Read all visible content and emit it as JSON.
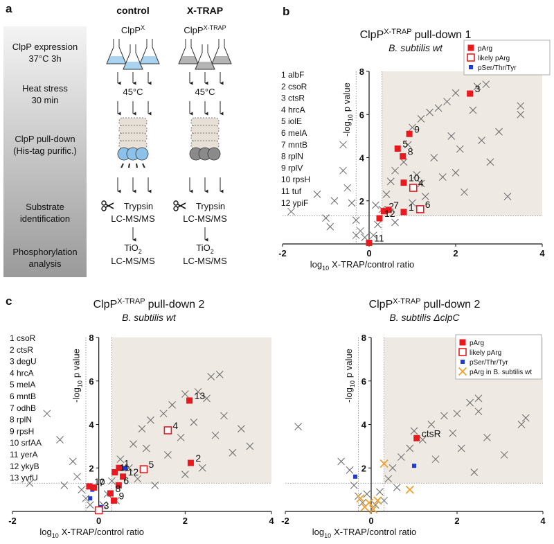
{
  "panel_labels": [
    "a",
    "b",
    "c"
  ],
  "workflow": {
    "steps": [
      [
        "ClpP expression",
        "37°C 3h"
      ],
      [
        "Heat stress",
        "30 min"
      ],
      [
        "ClpP pull-down",
        "(His-tag purific.)"
      ],
      [
        "Substrate",
        "identification"
      ],
      [
        "Phosphorylation",
        "analysis"
      ]
    ],
    "columns": [
      {
        "header": "control",
        "protein": "ClpP",
        "protein_sup": "X"
      },
      {
        "header": "X-TRAP",
        "protein": "ClpP",
        "protein_sup": "X-TRAP"
      }
    ],
    "temperature": "45°C",
    "digest": "Trypsin",
    "ms": "LC-MS/MS",
    "enrich": "TiO",
    "enrich_sub": "2"
  },
  "chart_data": [
    {
      "type": "scatter",
      "title": "ClpP",
      "title_sup": "X-TRAP",
      "title_suffix": "pull-down 1",
      "subtitle": "B. subtilis wt",
      "xlabel": "log",
      "xlabel_sub": "10",
      "xlabel_suffix": "X-TRAP/control ratio",
      "ylabel": "-log",
      "ylabel_sub": "10",
      "ylabel_suffix": "p value",
      "xlim": [
        -2,
        4
      ],
      "ylim": [
        0,
        8
      ],
      "xticks": [
        -2,
        0,
        2,
        4
      ],
      "yticks": [
        2,
        4,
        6,
        8
      ],
      "thresholds": {
        "x": [
          -0.3,
          0.3
        ],
        "y": 1.3
      },
      "legend": "upper right",
      "key": [
        "1 albF",
        "2 csoR",
        "3 ctsR",
        "4 hrcA",
        "5 iolE",
        "6 melA",
        "7 mntB",
        "8 rplN",
        "9 rplV",
        "10 rpsH",
        "11 tuf",
        "12 ypiF"
      ],
      "series": [
        {
          "color": "#666666",
          "marker": "x",
          "x": [
            -1.8,
            -1.2,
            -1.0,
            -0.8,
            -0.6,
            -0.6,
            -0.5,
            -0.4,
            -0.3,
            -0.2,
            -0.1,
            0.1,
            0.2,
            0.3,
            0.4,
            0.5,
            0.6,
            0.8,
            0.9,
            1.0,
            1.1,
            1.2,
            1.3,
            1.4,
            1.5,
            1.6,
            1.7,
            1.8,
            1.9,
            2.0,
            2.1,
            2.2,
            2.4,
            2.5,
            2.6,
            2.7,
            2.8,
            3.0,
            3.2,
            3.5,
            3.5,
            -0.9,
            -0.3,
            0.15,
            0.6,
            1.0,
            1.2,
            2.0
          ],
          "values": [
            1.5,
            2.3,
            1.2,
            2.0,
            3.4,
            4.6,
            2.6,
            1.9,
            1.1,
            0.6,
            0.3,
            0.4,
            0.9,
            1.6,
            2.3,
            2.9,
            3.4,
            3.8,
            4.6,
            5.4,
            3.2,
            5.8,
            2.2,
            6.1,
            4.0,
            6.3,
            3.1,
            6.6,
            5.0,
            7.0,
            4.4,
            2.4,
            6.2,
            7.3,
            4.8,
            7.4,
            3.8,
            5.2,
            2.2,
            6.0,
            6.4,
            0.8,
            0.4,
            1.8,
            1.0,
            1.9,
            2.8,
            3.3
          ]
        },
        {
          "name": "pArg",
          "color": "#e8191f",
          "marker": "square",
          "x": [
            2.33,
            0.93,
            0.66,
            0.78,
            0.8,
            0.34,
            0.45,
            0.8,
            0.24,
            0.0
          ],
          "values": [
            6.97,
            5.1,
            4.42,
            4.06,
            2.84,
            1.52,
            1.58,
            1.48,
            1.19,
            0.05
          ],
          "point_labels": [
            "3",
            "9",
            "5",
            "8",
            "10",
            "2",
            "7",
            "1",
            "12",
            "11"
          ]
        },
        {
          "name": "likely pArg",
          "color": "#e8191f",
          "marker": "open-square",
          "x": [
            1.02,
            1.18
          ],
          "values": [
            2.6,
            1.61
          ],
          "point_labels": [
            "4",
            "6"
          ]
        },
        {
          "name": "pSer/Thr/Tyr",
          "color": "#1f3bd6",
          "marker": "small-square",
          "x": [],
          "values": []
        }
      ]
    },
    {
      "type": "scatter",
      "title": "ClpP",
      "title_sup": "X-TRAP",
      "title_suffix": "pull-down 2",
      "subtitle": "B. subtilis wt",
      "xlabel": "log",
      "xlabel_sub": "10",
      "xlabel_suffix": "X-TRAP/control ratio",
      "ylabel": "-log",
      "ylabel_sub": "10",
      "ylabel_suffix": "p value",
      "xlim": [
        -2,
        4
      ],
      "ylim": [
        0,
        8
      ],
      "xticks": [
        -2,
        0,
        2,
        4
      ],
      "yticks": [
        2,
        4,
        6,
        8
      ],
      "thresholds": {
        "x": [
          -0.3,
          0.3
        ],
        "y": 1.3
      },
      "key": [
        "1 csoR",
        "2 ctsR",
        "3 degU",
        "4 hrcA",
        "5 melA",
        "6 mntB",
        "7 odhB",
        "8 rplN",
        "9 rpsH",
        "10 srfAA",
        "11 yerA",
        "12 ykyB",
        "13 yvfU"
      ],
      "series": [
        {
          "color": "#666666",
          "marker": "x",
          "x": [
            -1.2,
            -0.9,
            -0.6,
            -0.5,
            -0.4,
            -0.3,
            -0.2,
            0.1,
            0.2,
            0.3,
            0.5,
            0.7,
            0.8,
            1.0,
            1.2,
            1.3,
            1.5,
            1.6,
            1.7,
            1.9,
            2.0,
            2.2,
            2.3,
            2.4,
            2.5,
            2.6,
            2.7,
            2.8,
            2.9,
            3.1,
            3.3,
            3.5,
            -1.6,
            -0.8,
            0.4,
            0.9,
            1.1,
            2.0
          ],
          "values": [
            4.5,
            3.3,
            2.3,
            1.6,
            1.0,
            0.6,
            0.3,
            0.3,
            0.8,
            1.4,
            2.4,
            2.0,
            3.1,
            3.8,
            4.2,
            1.2,
            4.5,
            2.6,
            4.9,
            3.4,
            5.4,
            4.1,
            5.5,
            2.0,
            5.2,
            6.2,
            3.5,
            6.3,
            4.4,
            2.7,
            3.8,
            3.0,
            1.3,
            1.2,
            0.5,
            1.5,
            2.9,
            1.7
          ]
        },
        {
          "color": "#1f3bd6",
          "marker": "small-square",
          "x": [
            -0.2,
            0.6,
            -0.15,
            0.05
          ],
          "values": [
            0.6,
            2.0,
            1.0,
            0.2
          ]
        },
        {
          "color": "#e8191f",
          "marker": "square",
          "x": [
            2.1,
            2.13,
            0.47,
            0.37,
            0.56,
            0.46,
            0.27,
            0.35,
            -0.22,
            -0.11
          ],
          "values": [
            5.1,
            2.23,
            2.0,
            1.8,
            1.6,
            1.2,
            0.83,
            0.5,
            1.15,
            1.1
          ],
          "point_labels": [
            "13",
            "2",
            "1",
            "11",
            "12",
            "6",
            "8",
            "9",
            "10",
            "7"
          ]
        },
        {
          "color": "#e8191f",
          "marker": "open-square",
          "x": [
            1.6,
            1.04,
            0.0
          ],
          "values": [
            3.73,
            1.94,
            0.05
          ],
          "point_labels": [
            "4",
            "5",
            "3"
          ]
        }
      ]
    },
    {
      "type": "scatter",
      "title": "ClpP",
      "title_sup": "X-TRAP",
      "title_suffix": "pull-down 2",
      "subtitle": "B. subtilis ΔclpC",
      "xlabel": "log",
      "xlabel_sub": "10",
      "xlabel_suffix": "X-TRAP/control ratio",
      "ylabel": "-log",
      "ylabel_sub": "10",
      "ylabel_suffix": "p value",
      "xlim": [
        -2,
        4
      ],
      "ylim": [
        0,
        8
      ],
      "xticks": [
        -2,
        0,
        2,
        4
      ],
      "yticks": [
        2,
        4,
        6,
        8
      ],
      "thresholds": {
        "x": [
          -0.3,
          0.3
        ],
        "y": 1.3
      },
      "legend": "upper right",
      "series": [
        {
          "color": "#666666",
          "marker": "x",
          "x": [
            -1.7,
            -0.7,
            -0.5,
            -0.4,
            -0.3,
            -0.2,
            0.1,
            0.2,
            0.4,
            0.5,
            0.7,
            0.9,
            1.0,
            1.2,
            1.4,
            1.5,
            1.7,
            1.9,
            2.0,
            2.1,
            2.3,
            2.5,
            2.5,
            2.7,
            2.4,
            3.1,
            3.5,
            3.6,
            0.3,
            -0.1,
            0.6
          ],
          "values": [
            3.9,
            2.3,
            1.9,
            1.2,
            0.7,
            0.4,
            0.3,
            0.9,
            1.5,
            2.0,
            2.5,
            2.9,
            3.7,
            3.3,
            4.0,
            2.4,
            4.4,
            3.6,
            4.5,
            2.9,
            5.0,
            4.6,
            5.2,
            3.4,
            1.8,
            2.6,
            4.0,
            4.3,
            0.5,
            0.8,
            1.1
          ]
        },
        {
          "name": "pArg",
          "color": "#e8191f",
          "marker": "square",
          "x": [
            1.06
          ],
          "values": [
            3.37
          ],
          "point_labels": [
            "ctsR"
          ]
        },
        {
          "name": "likely pArg",
          "color": "#e8191f",
          "marker": "open-square",
          "x": [],
          "values": []
        },
        {
          "name": "pSer/Thr/Tyr",
          "color": "#1f3bd6",
          "marker": "small-square",
          "x": [
            1.0,
            -0.37
          ],
          "values": [
            2.1,
            1.6
          ]
        },
        {
          "name": "pArg in B. subtilis wt",
          "color": "#f0a030",
          "marker": "x",
          "x": [
            0.3,
            -0.25,
            -0.05,
            0.15,
            0.9,
            0.05,
            -0.15
          ],
          "values": [
            2.2,
            0.6,
            0.4,
            0.5,
            1.0,
            0.1,
            0.2
          ]
        }
      ]
    }
  ]
}
